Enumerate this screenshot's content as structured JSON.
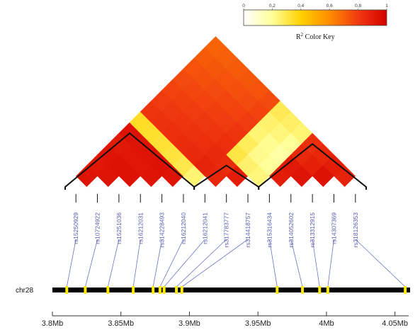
{
  "chart_data": {
    "type": "heatmap",
    "color_key": {
      "title_main": "R",
      "title_sup": "2",
      "title_rest": " Color Key",
      "ticks": [
        0,
        0.2,
        0.4,
        0.6,
        0.8,
        1
      ],
      "tick_labels": [
        "0",
        "0,2",
        "0,4",
        "0,6",
        "0,8",
        "1"
      ],
      "colors": [
        "#ffffff",
        "#ffff9a",
        "#ffd100",
        "#ff8c00",
        "#f03a10",
        "#d50000"
      ]
    },
    "chromosome": "chr28",
    "axis": {
      "min": 3.8,
      "max": 4.06,
      "ticks": [
        3.8,
        3.85,
        3.9,
        3.95,
        4.0,
        4.05
      ],
      "tick_labels": [
        "3.8Mb",
        "3.85Mb",
        "3.9Mb",
        "3.95Mb",
        "4Mb",
        "4.05Mb"
      ]
    },
    "snps": [
      {
        "id": "rs15250929",
        "position": 3.8105
      },
      {
        "id": "rs10724922",
        "position": 3.824
      },
      {
        "id": "rs15251036",
        "position": 3.8405
      },
      {
        "id": "rs16212031",
        "position": 3.859
      },
      {
        "id": "rs314228493",
        "position": 3.8735
      },
      {
        "id": "rs16212040",
        "position": 3.8785
      },
      {
        "id": "rs16212041",
        "position": 3.8815
      },
      {
        "id": "rs317783777",
        "position": 3.8905
      },
      {
        "id": "rs314418757",
        "position": 3.8945
      },
      {
        "id": "rs315316434",
        "position": 3.964
      },
      {
        "id": "rs314052602",
        "position": 3.9825
      },
      {
        "id": "rs313312915",
        "position": 3.995
      },
      {
        "id": "rs14307369",
        "position": 4.001
      },
      {
        "id": "rs318126353",
        "position": 4.0575
      }
    ],
    "blocks": [
      [
        0,
        5
      ],
      [
        6,
        8
      ],
      [
        9,
        13
      ]
    ],
    "r2_rows": [
      [
        0.93,
        0.92,
        0.93,
        0.91,
        0.94,
        0.35,
        0.82,
        0.8,
        0.78,
        0.76,
        0.74,
        0.72,
        0.7
      ],
      [
        0.93,
        0.94,
        0.92,
        0.93,
        0.34,
        0.83,
        0.81,
        0.79,
        0.77,
        0.75,
        0.73,
        0.71
      ],
      [
        0.94,
        0.92,
        0.93,
        0.33,
        0.84,
        0.82,
        0.8,
        0.78,
        0.76,
        0.74,
        0.72
      ],
      [
        0.93,
        0.94,
        0.32,
        0.85,
        0.83,
        0.81,
        0.79,
        0.77,
        0.75,
        0.73
      ],
      [
        0.93,
        0.3,
        0.86,
        0.84,
        0.82,
        0.8,
        0.78,
        0.76,
        0.74
      ],
      [
        0.25,
        0.88,
        0.86,
        0.84,
        0.82,
        0.8,
        0.78,
        0.76
      ],
      [
        0.87,
        0.85,
        0.31,
        0.28,
        0.25,
        0.26,
        0.29
      ],
      [
        0.9,
        0.26,
        0.22,
        0.21,
        0.24,
        0.27
      ],
      [
        0.24,
        0.2,
        0.18,
        0.2,
        0.25
      ],
      [
        0.9,
        0.91,
        0.86,
        0.84
      ],
      [
        0.93,
        0.89,
        0.87
      ],
      [
        0.94,
        0.9
      ],
      [
        0.88
      ]
    ]
  }
}
